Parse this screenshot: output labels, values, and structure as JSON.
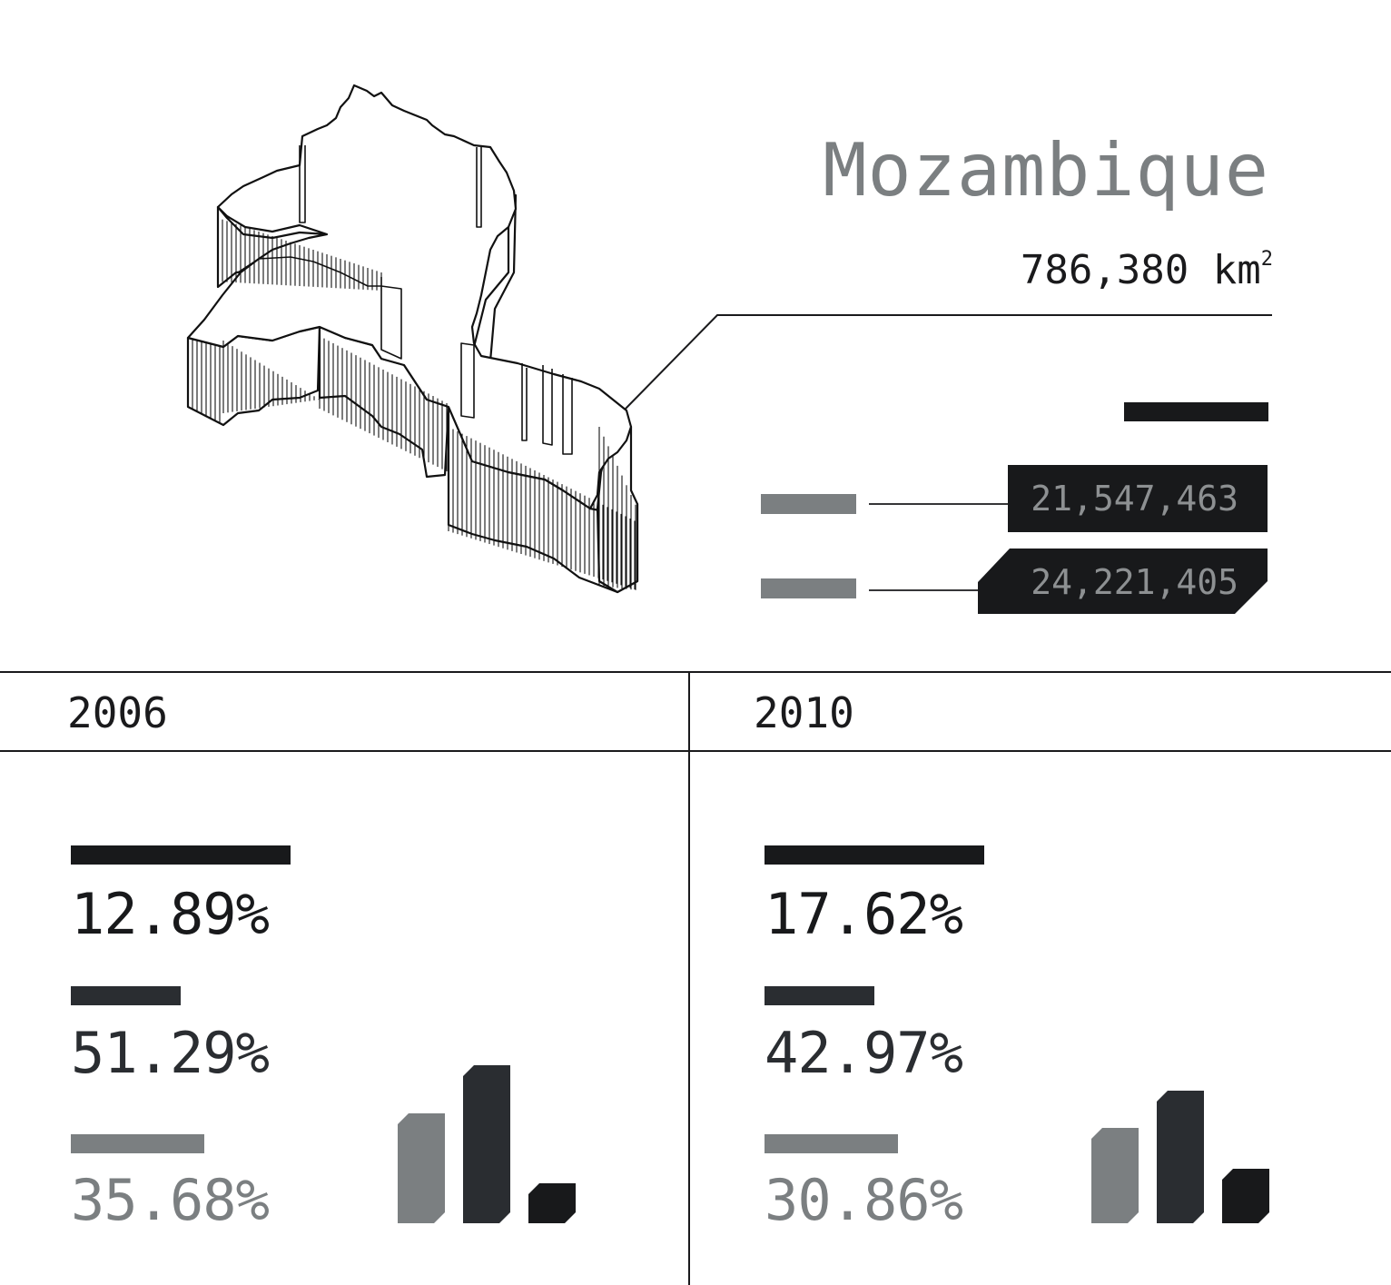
{
  "colors": {
    "black": "#18191b",
    "dark": "#2a2d31",
    "gray": "#7b7f81",
    "line": "#1a1a1c"
  },
  "country": {
    "name": "Mozambique",
    "area_value": "786,380 km",
    "area_sup": "2"
  },
  "population": [
    {
      "label": "21,547,463",
      "value": 21547463
    },
    {
      "label": "24,221,405",
      "value": 24221405
    }
  ],
  "chart_data": [
    {
      "type": "bar",
      "title": "2006",
      "categories": [
        "black",
        "dark",
        "gray"
      ],
      "values": [
        12.89,
        51.29,
        35.68
      ],
      "labels": [
        "12.89%",
        "51.29%",
        "35.68%"
      ]
    },
    {
      "type": "bar",
      "title": "2010",
      "categories": [
        "black",
        "dark",
        "gray"
      ],
      "values": [
        17.62,
        42.97,
        30.86
      ],
      "labels": [
        "17.62%",
        "42.97%",
        "30.86%"
      ]
    }
  ]
}
